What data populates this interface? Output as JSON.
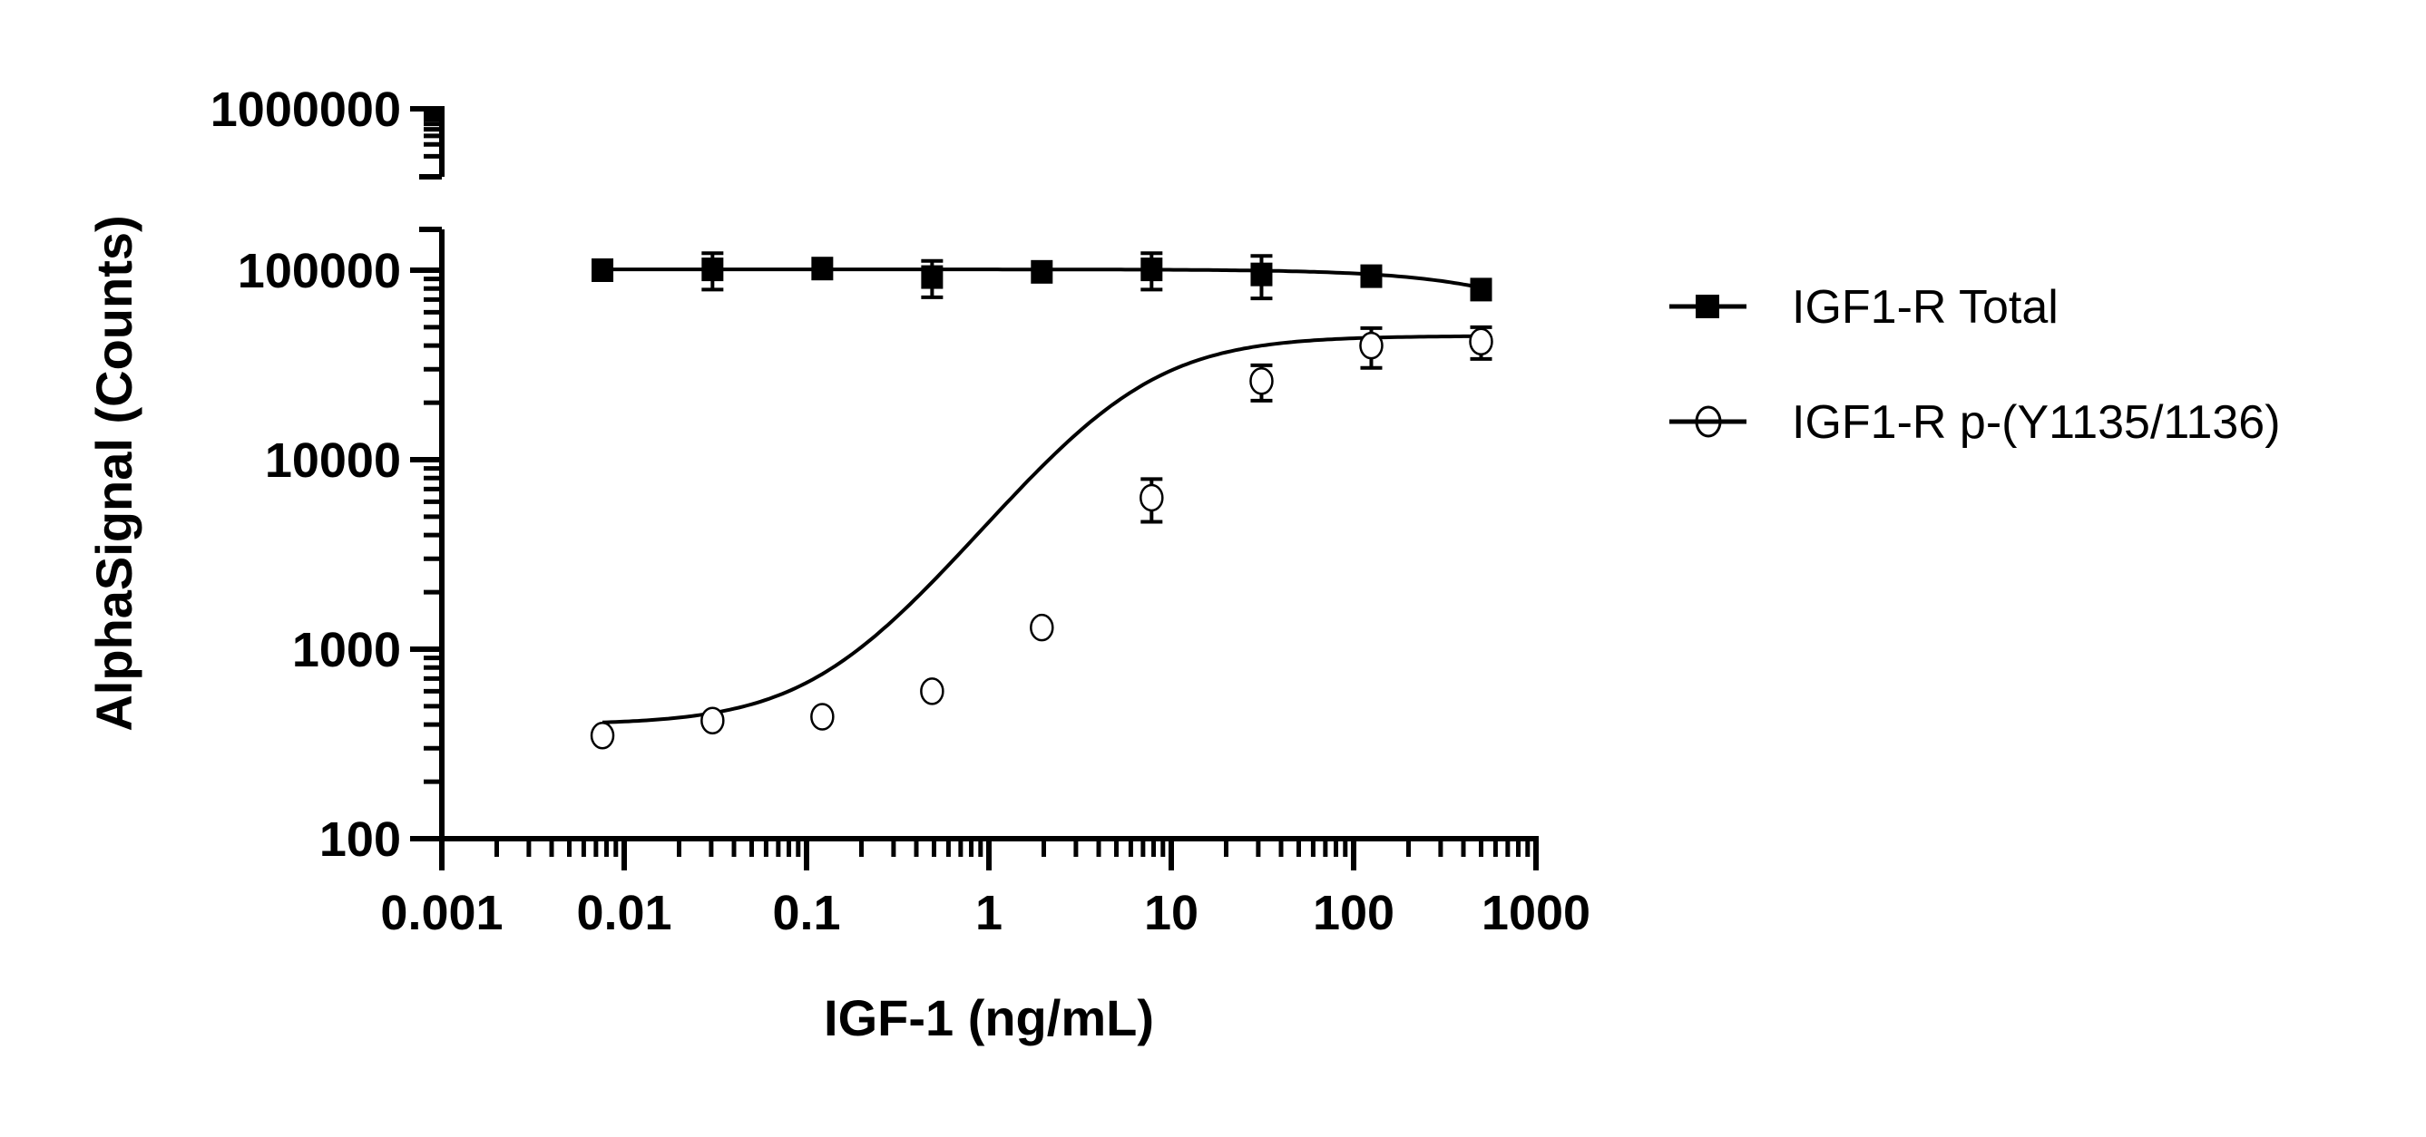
{
  "chart_data": {
    "type": "scatter",
    "title": "",
    "xlabel": "IGF-1 (ng/mL)",
    "ylabel": "AlphaSignal (Counts)",
    "x_scale": "log",
    "y_scale": "log",
    "xlim": [
      0.001,
      1000
    ],
    "ylim": [
      100,
      1000000
    ],
    "y_axis_break": true,
    "x_ticks": [
      "0.001",
      "0.01",
      "0.1",
      "1",
      "10",
      "100",
      "1000"
    ],
    "y_ticks": [
      "100",
      "1000",
      "10000",
      "100000",
      "1000000"
    ],
    "grid": false,
    "legend_position": "right",
    "series": [
      {
        "name": "IGF1-R Total",
        "marker": "filled-square",
        "color": "#000000",
        "x": [
          0.0076,
          0.0305,
          0.122,
          0.488,
          1.95,
          7.8,
          31.25,
          125,
          500
        ],
        "y": [
          100000,
          101000,
          102000,
          92000,
          98000,
          101000,
          95000,
          93000,
          79000
        ],
        "error": [
          8000,
          22000,
          12000,
          20000,
          7000,
          22000,
          24000,
          8000,
          6000
        ]
      },
      {
        "name": "IGF1-R  p-(Y1135/1136)",
        "marker": "open-circle",
        "color": "#000000",
        "x": [
          0.0076,
          0.0305,
          0.122,
          0.488,
          1.95,
          7.8,
          31.25,
          125,
          500
        ],
        "y": [
          350,
          420,
          440,
          600,
          1300,
          6300,
          26000,
          40000,
          42000
        ],
        "error": [
          20,
          25,
          30,
          40,
          220,
          1600,
          5500,
          9500,
          8000
        ]
      }
    ]
  }
}
